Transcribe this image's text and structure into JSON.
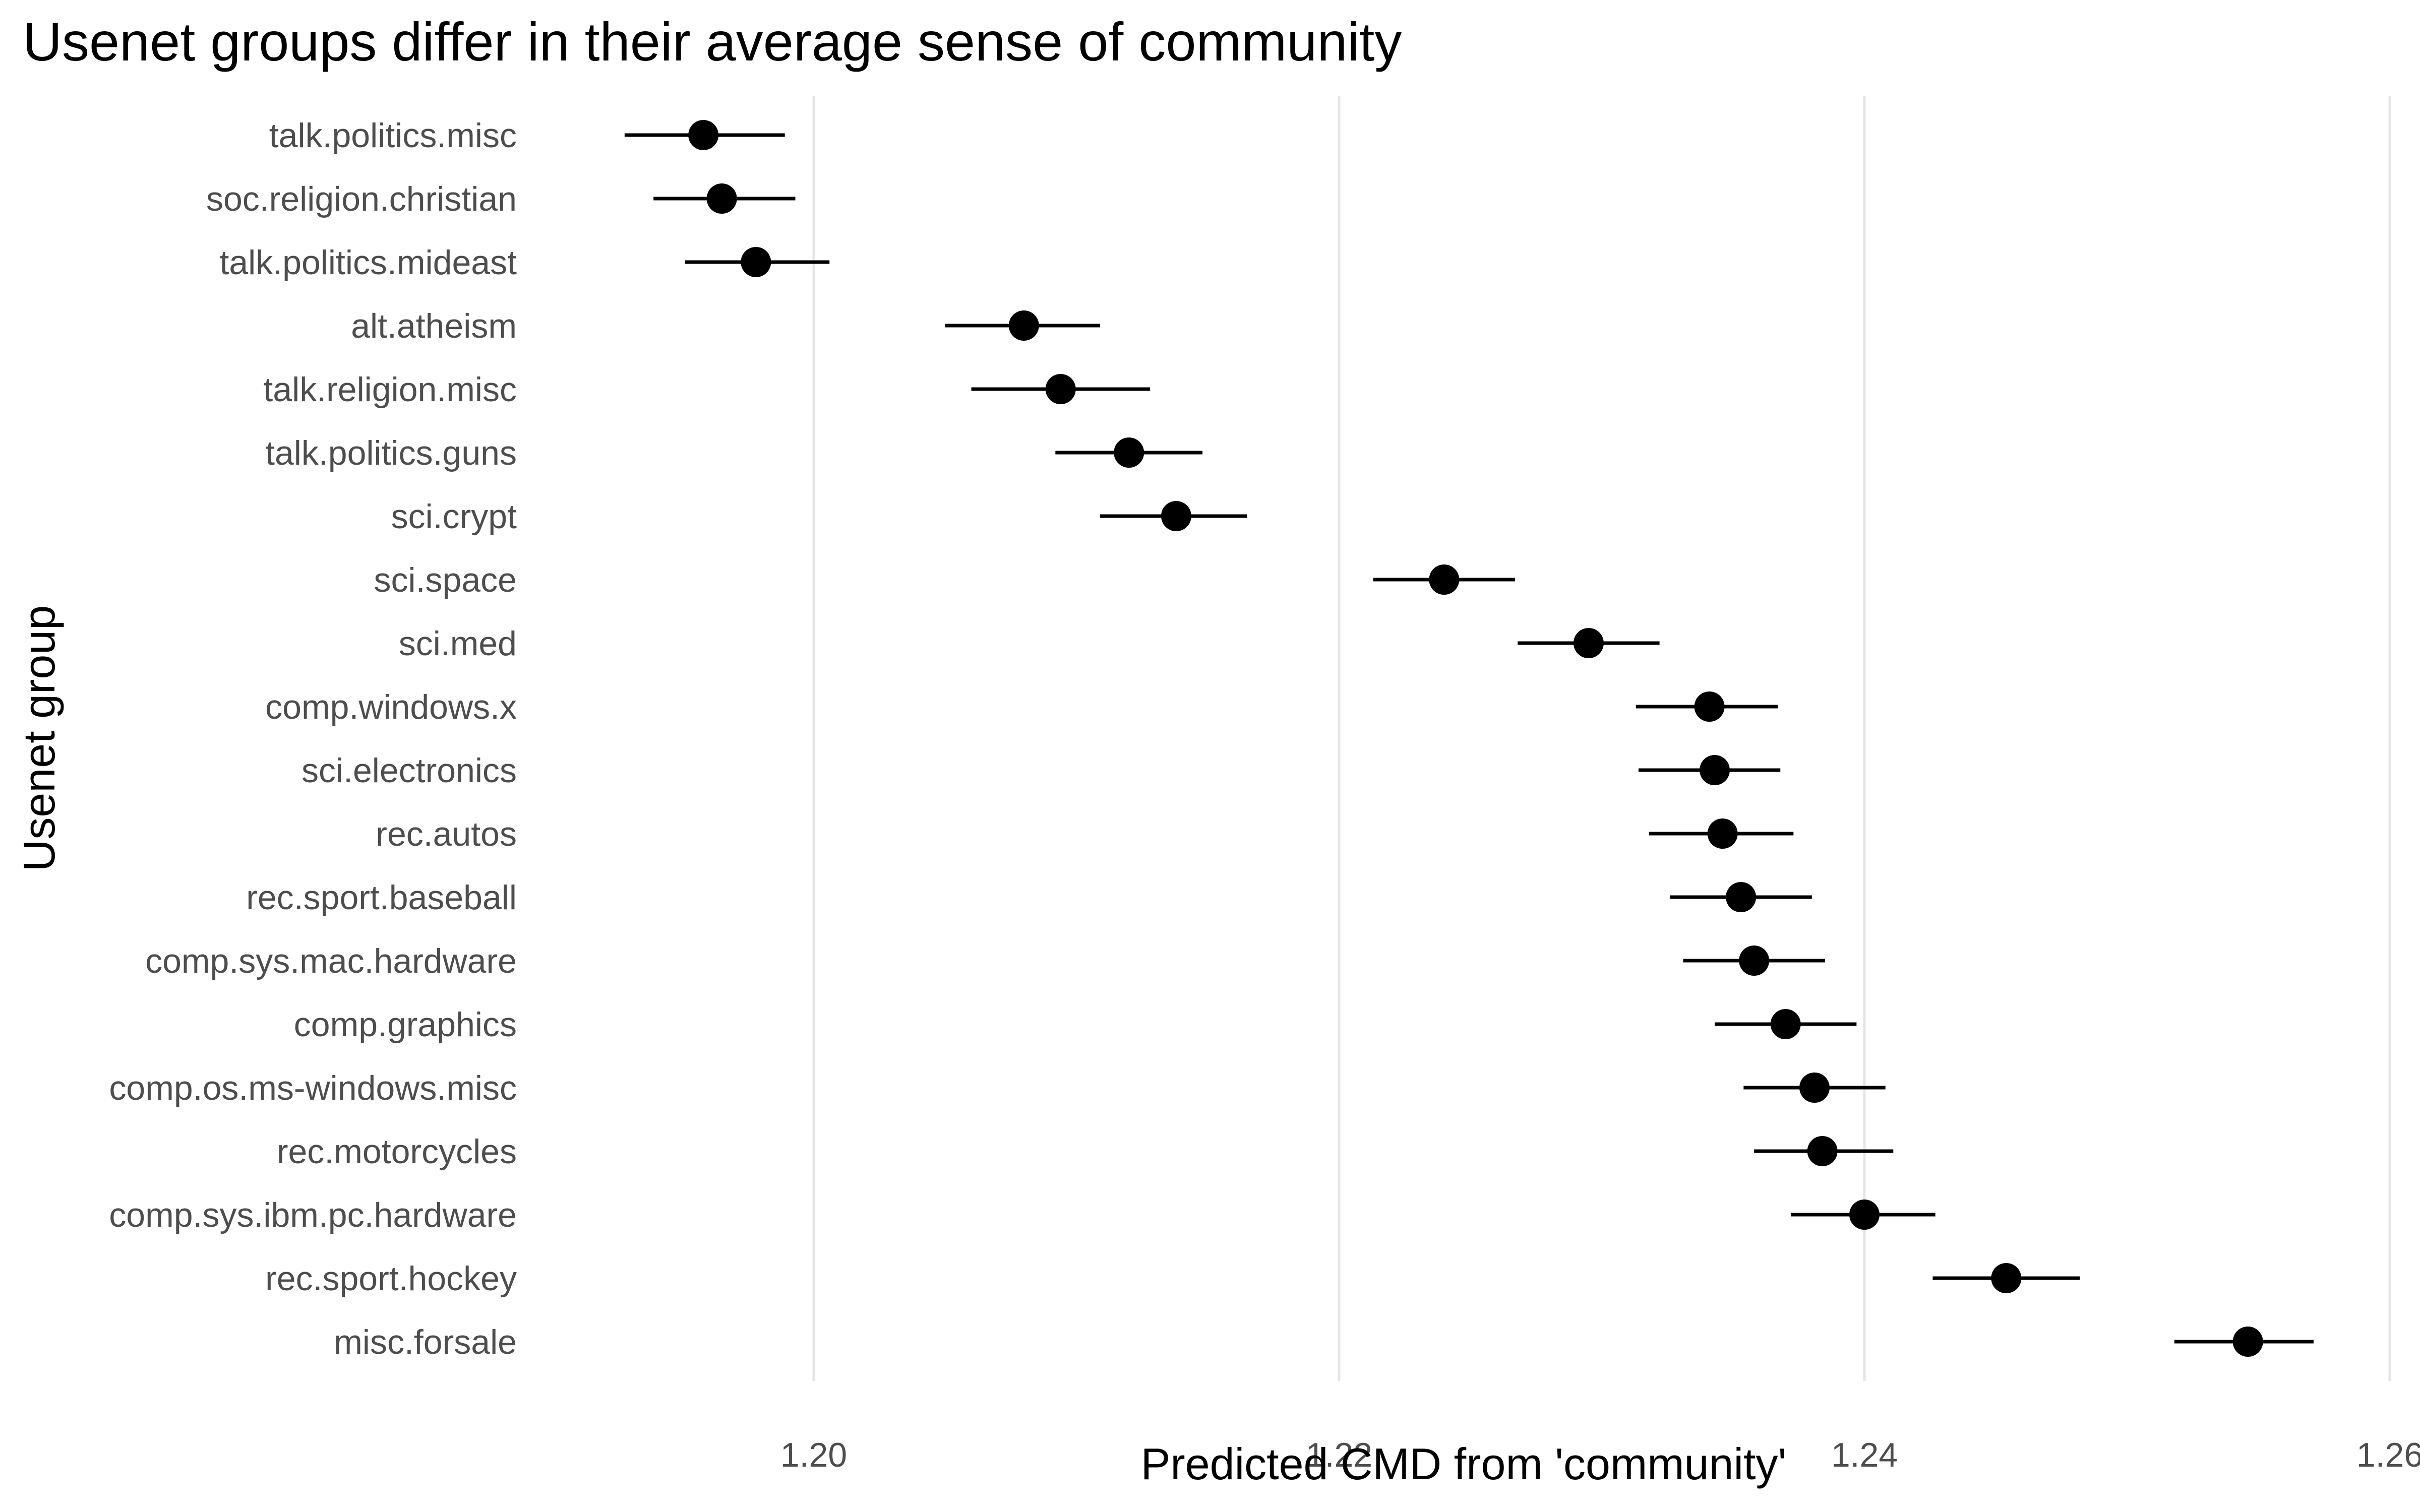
{
  "chart_data": {
    "type": "scatter",
    "title": "Usenet groups differ in their average sense of community",
    "xlabel": "Predicted CMD from 'community'",
    "ylabel": "Usenet group",
    "xlim": [
      1.19,
      1.26
    ],
    "xticks": [
      1.2,
      1.22,
      1.24,
      1.26
    ],
    "xtick_labels": [
      "1.20",
      "1.22",
      "1.24",
      "1.26"
    ],
    "grid": "vertical major",
    "legend": "none",
    "point_color": "#000000",
    "categories": [
      "talk.politics.misc",
      "soc.religion.christian",
      "talk.politics.mideast",
      "alt.atheism",
      "talk.religion.misc",
      "talk.politics.guns",
      "sci.crypt",
      "sci.space",
      "sci.med",
      "comp.windows.x",
      "sci.electronics",
      "rec.autos",
      "rec.sport.baseball",
      "comp.sys.mac.hardware",
      "comp.graphics",
      "comp.os.ms-windows.misc",
      "rec.motorcycles",
      "comp.sys.ibm.pc.hardware",
      "rec.sport.hockey",
      "misc.forsale"
    ],
    "estimates": [
      1.1958,
      1.1965,
      1.1978,
      1.208,
      1.2094,
      1.212,
      1.2138,
      1.224,
      1.2295,
      1.2341,
      1.2343,
      1.2346,
      1.2353,
      1.2358,
      1.237,
      1.2381,
      1.2384,
      1.24,
      1.2454,
      1.2546
    ],
    "lower": [
      1.1928,
      1.1939,
      1.1951,
      1.205,
      1.206,
      1.2092,
      1.2109,
      1.2213,
      1.2268,
      1.2313,
      1.2314,
      1.2318,
      1.2326,
      1.2331,
      1.2343,
      1.2354,
      1.2358,
      1.2372,
      1.2426,
      1.2518
    ],
    "upper": [
      1.1989,
      1.1993,
      1.2006,
      1.2109,
      1.2128,
      1.2148,
      1.2165,
      1.2267,
      1.2322,
      1.2367,
      1.2368,
      1.2373,
      1.238,
      1.2385,
      1.2397,
      1.2408,
      1.2411,
      1.2427,
      1.2482,
      1.2571
    ]
  }
}
